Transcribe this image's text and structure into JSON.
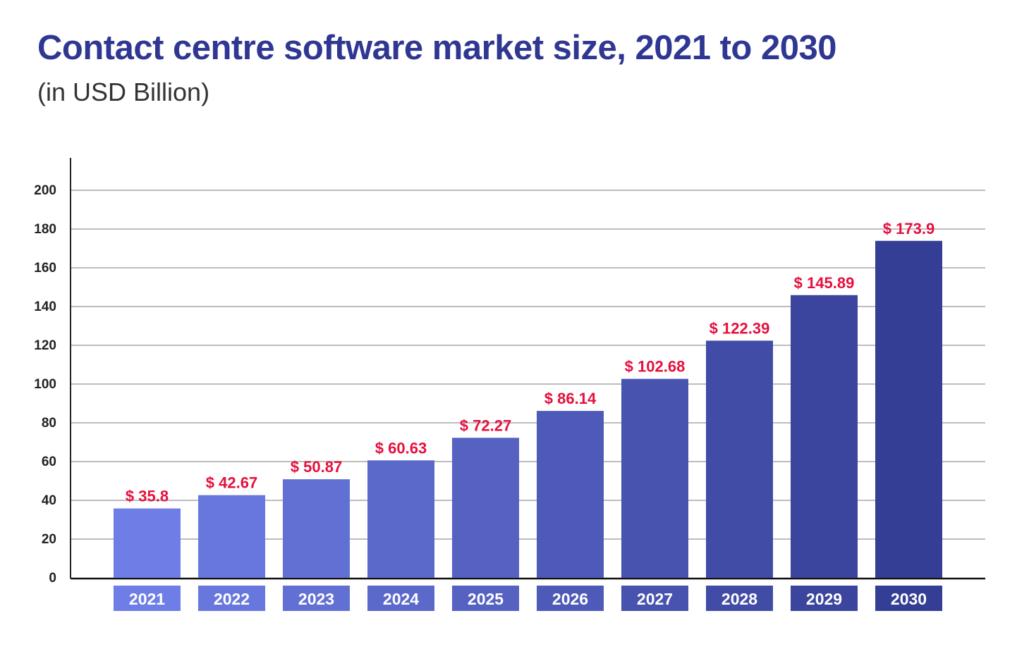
{
  "chart_data": {
    "type": "bar",
    "title": "Contact centre software market size, 2021 to 2030",
    "subtitle": "(in USD Billion)",
    "categories": [
      "2021",
      "2022",
      "2023",
      "2024",
      "2025",
      "2026",
      "2027",
      "2028",
      "2029",
      "2030"
    ],
    "values": [
      35.8,
      42.67,
      50.87,
      60.63,
      72.27,
      86.14,
      102.68,
      122.39,
      145.89,
      173.9
    ],
    "data_labels": [
      "$ 35.8",
      "$ 42.67",
      "$ 50.87",
      "$ 60.63",
      "$ 72.27",
      "$ 86.14",
      "$ 102.68",
      "$ 122.39",
      "$ 145.89",
      "$ 173.9"
    ],
    "yticks": [
      0,
      20,
      40,
      60,
      80,
      100,
      120,
      140,
      160,
      180,
      200
    ],
    "ylim": [
      0,
      200
    ],
    "grid": true,
    "colors": {
      "bar_start": "#6f7ee6",
      "bar_end": "#343e94",
      "label": "#e5103d",
      "title": "#2f3792",
      "grid": "#bdbdbd"
    }
  }
}
